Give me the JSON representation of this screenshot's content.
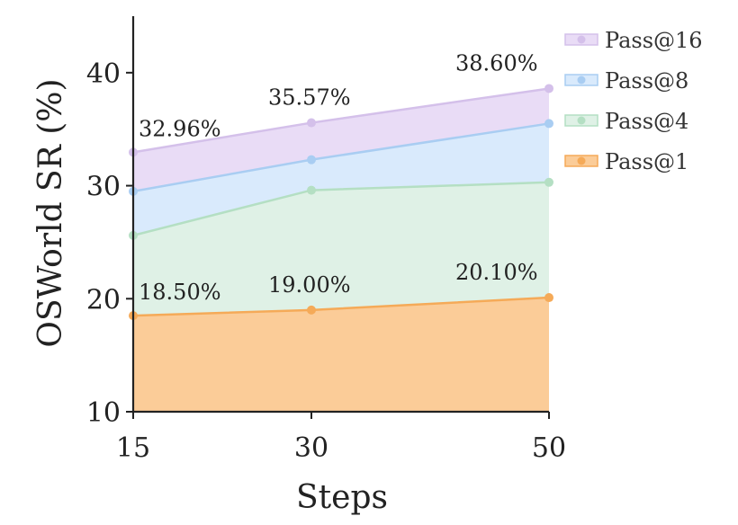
{
  "chart_data": {
    "type": "area",
    "xlabel": "Steps",
    "ylabel": "OSWorld SR (%)",
    "x": [
      15,
      30,
      50
    ],
    "x_ticks": [
      15,
      30,
      50
    ],
    "ylim": [
      10,
      45
    ],
    "y_ticks": [
      10,
      20,
      30,
      40
    ],
    "grid": false,
    "legend_position": "top-right",
    "series": [
      {
        "name": "Pass@16",
        "values": [
          32.96,
          35.57,
          38.6
        ],
        "labels": [
          "32.96%",
          "35.57%",
          "38.60%"
        ],
        "fill": "#e9dcf6",
        "line": "#d4c0ea"
      },
      {
        "name": "Pass@8",
        "values": [
          29.5,
          32.3,
          35.5
        ],
        "labels": [],
        "fill": "#d9eafc",
        "line": "#a9cdf2"
      },
      {
        "name": "Pass@4",
        "values": [
          25.6,
          29.6,
          30.3
        ],
        "labels": [],
        "fill": "#dff1e6",
        "line": "#b4dfc3"
      },
      {
        "name": "Pass@1",
        "values": [
          18.5,
          19.0,
          20.1
        ],
        "labels": [
          "18.50%",
          "19.00%",
          "20.10%"
        ],
        "fill": "#fbcc98",
        "line": "#f5aa58"
      }
    ]
  }
}
